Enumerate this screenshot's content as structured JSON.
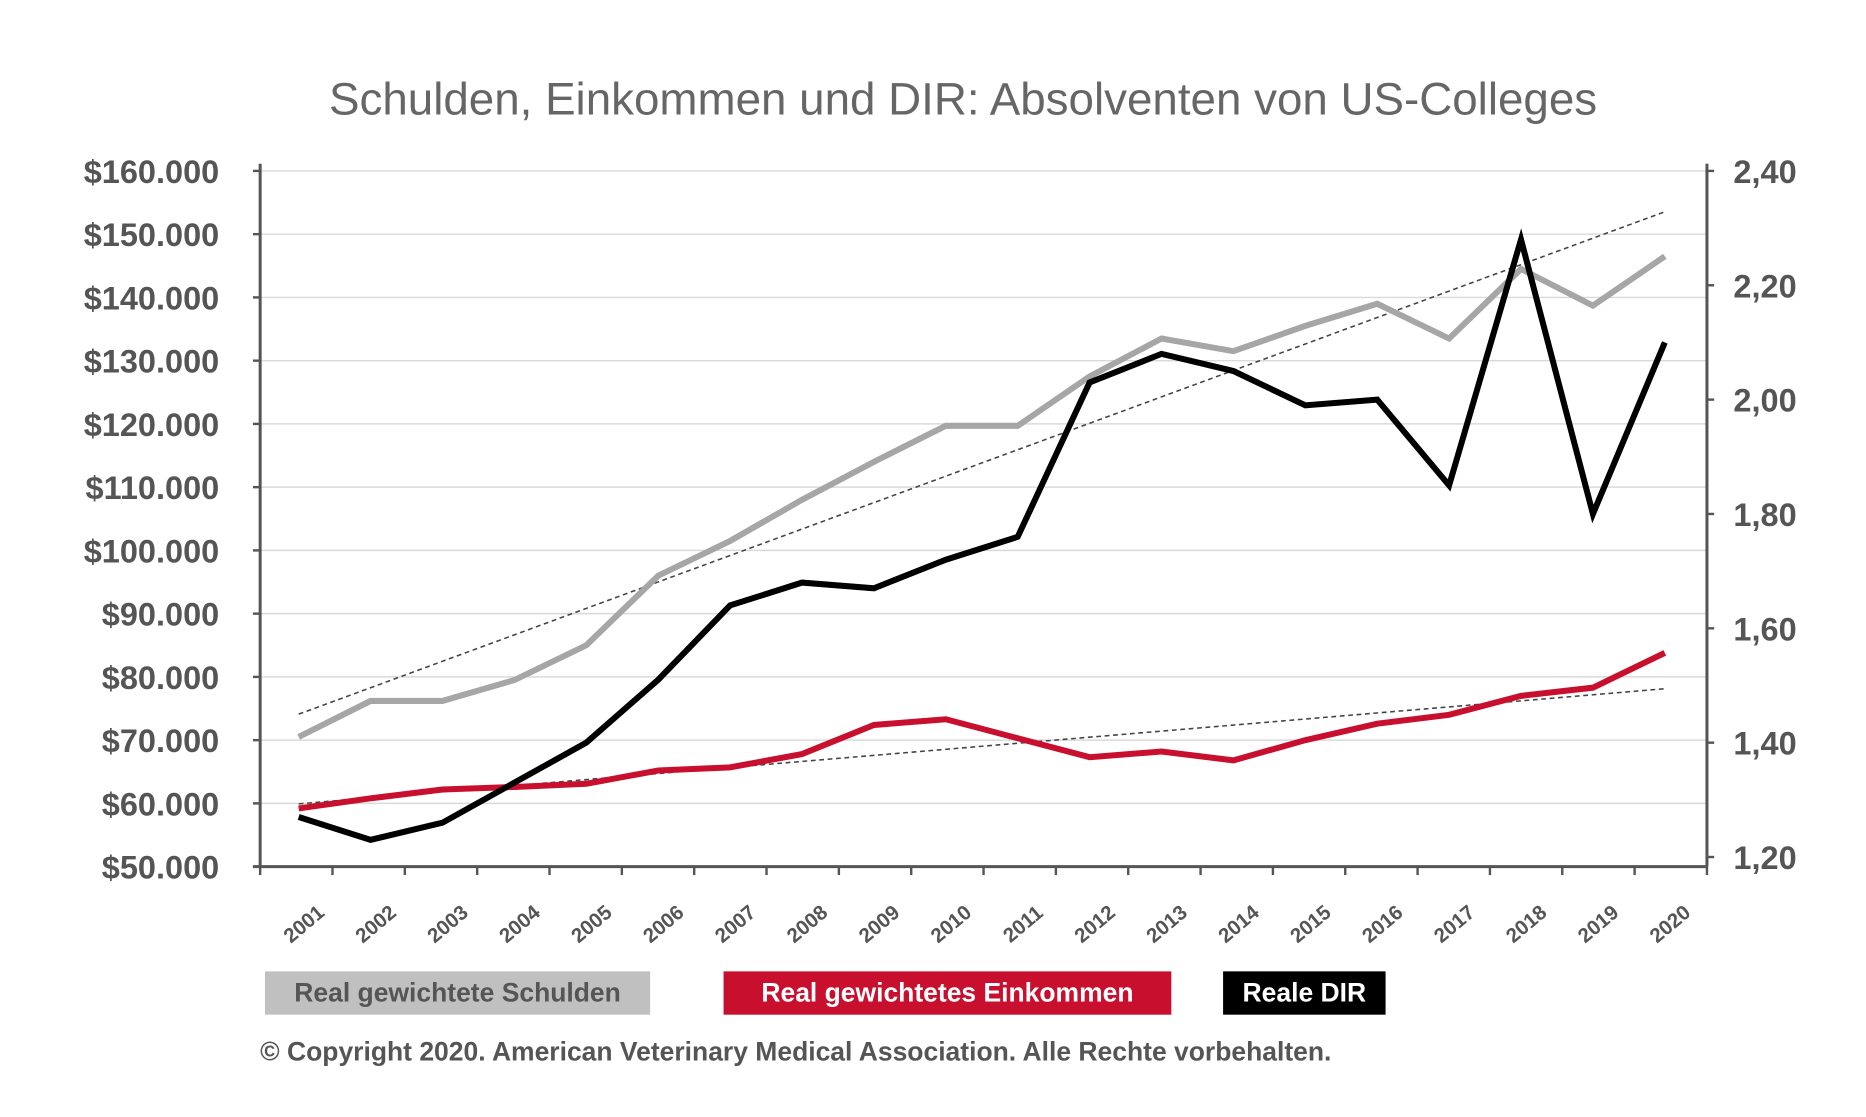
{
  "chart_data": {
    "type": "line",
    "title": "Schulden, Einkommen und DIR: Absolventen von US-Colleges",
    "x": [
      "2001",
      "2002",
      "2003",
      "2004",
      "2005",
      "2006",
      "2007",
      "2008",
      "2009",
      "2010",
      "2011",
      "2012",
      "2013",
      "2014",
      "2015",
      "2016",
      "2017",
      "2018",
      "2019",
      "2020"
    ],
    "y_left": {
      "ylim": [
        50000,
        160000
      ],
      "ticks": [
        "$50.000",
        "$60.000",
        "$70.000",
        "$80.000",
        "$90.000",
        "$100.000",
        "$110.000",
        "$120.000",
        "$130.000",
        "$140.000",
        "$150.000",
        "$160.000"
      ],
      "tick_values": [
        50000,
        60000,
        70000,
        80000,
        90000,
        100000,
        110000,
        120000,
        130000,
        140000,
        150000,
        160000
      ]
    },
    "y_right": {
      "ylim": [
        1.2,
        2.4
      ],
      "ticks": [
        "1,20",
        "1,40",
        "1,60",
        "1,80",
        "2,00",
        "2,20",
        "2,40"
      ],
      "tick_values": [
        1.2,
        1.4,
        1.6,
        1.8,
        2.0,
        2.2,
        2.4
      ]
    },
    "grid": true,
    "legend_placement": "bottom",
    "series": [
      {
        "name": "Real gewichtete Schulden",
        "axis": "left",
        "color": "#a6a6a6",
        "trendline": true,
        "values": [
          70500,
          76200,
          76200,
          79500,
          85000,
          96000,
          101500,
          108000,
          114000,
          119700,
          119700,
          127500,
          133500,
          131500,
          135500,
          139000,
          133500,
          144500,
          138700,
          146500
        ]
      },
      {
        "name": "Real gewichtetes Einkommen",
        "axis": "left",
        "color": "#c8102e",
        "trendline": true,
        "values": [
          59200,
          60800,
          62200,
          62600,
          63100,
          65200,
          65700,
          67800,
          72400,
          73300,
          70300,
          67300,
          68200,
          66800,
          70000,
          72600,
          74000,
          77000,
          78300,
          83800
        ]
      },
      {
        "name": "Reale DIR",
        "axis": "right",
        "color": "#000000",
        "trendline": false,
        "values": [
          1.27,
          1.23,
          1.26,
          1.33,
          1.4,
          1.51,
          1.64,
          1.68,
          1.67,
          1.72,
          1.76,
          2.03,
          2.08,
          2.05,
          1.99,
          2.0,
          1.85,
          2.28,
          1.8,
          2.1
        ]
      }
    ]
  },
  "legend": {
    "items": [
      {
        "label": "Real gewichtete Schulden",
        "bg": "#c0c0c0",
        "fg": "#555555"
      },
      {
        "label": "Real gewichtetes Einkommen",
        "bg": "#c8102e",
        "fg": "#ffffff"
      },
      {
        "label": "Reale DIR",
        "bg": "#000000",
        "fg": "#ffffff"
      }
    ]
  },
  "copyright": "© Copyright 2020. American Veterinary Medical Association. Alle Rechte vorbehalten."
}
